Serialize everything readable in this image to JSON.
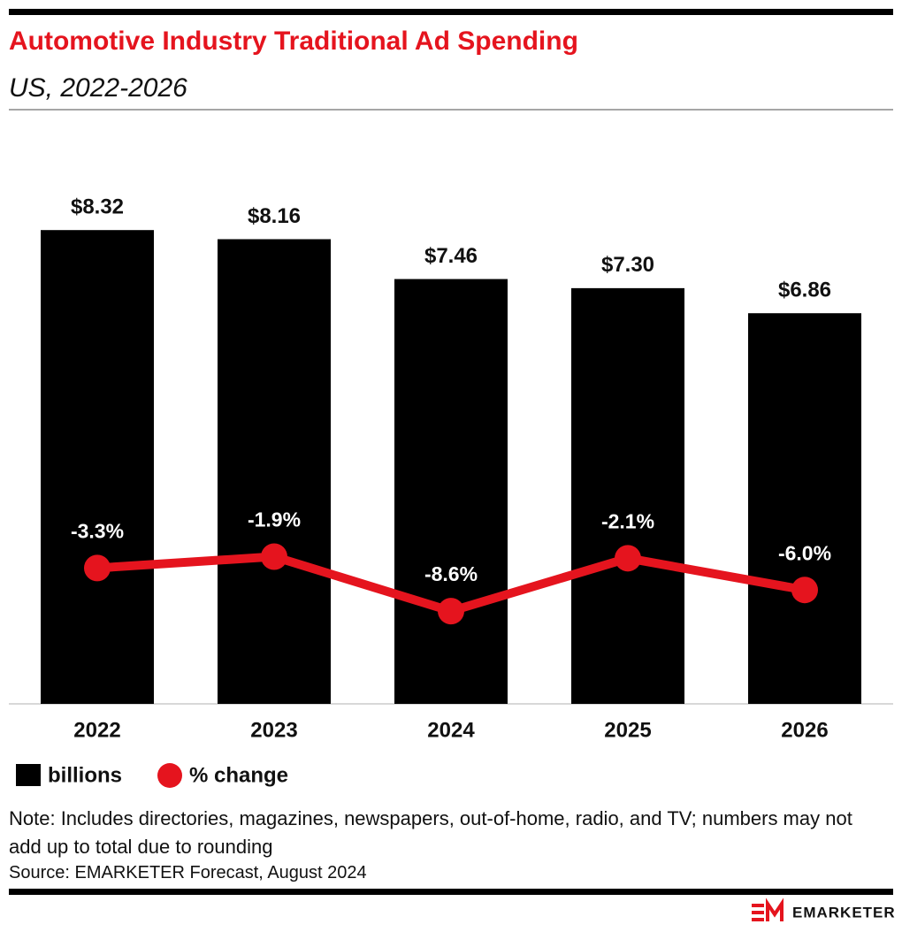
{
  "chart_data": {
    "type": "bar",
    "title": "Automotive Industry Traditional Ad Spending",
    "subtitle": "US, 2022-2026",
    "categories": [
      "2022",
      "2023",
      "2024",
      "2025",
      "2026"
    ],
    "series": [
      {
        "name": "billions",
        "type": "bar",
        "color": "#000000",
        "values": [
          8.32,
          8.16,
          7.46,
          7.3,
          6.86
        ],
        "value_labels": [
          "$8.32",
          "$8.16",
          "$7.46",
          "$7.30",
          "$6.86"
        ]
      },
      {
        "name": "% change",
        "type": "line",
        "axis": "y2",
        "color": "#e5141e",
        "values": [
          -3.3,
          -1.9,
          -8.6,
          -2.1,
          -6.0
        ],
        "value_labels": [
          "-3.3%",
          "-1.9%",
          "-8.6%",
          "-2.1%",
          "-6.0%"
        ]
      }
    ],
    "ylim": [
      0,
      10
    ],
    "y2lim": [
      -20,
      50
    ],
    "legend": "bottom-left",
    "note": "Note: Includes directories, magazines, newspapers, out-of-home, radio, and TV; numbers may not add up to total due to rounding",
    "source": "Source: EMARKETER Forecast, August 2024",
    "logo": "EMARKETER"
  }
}
